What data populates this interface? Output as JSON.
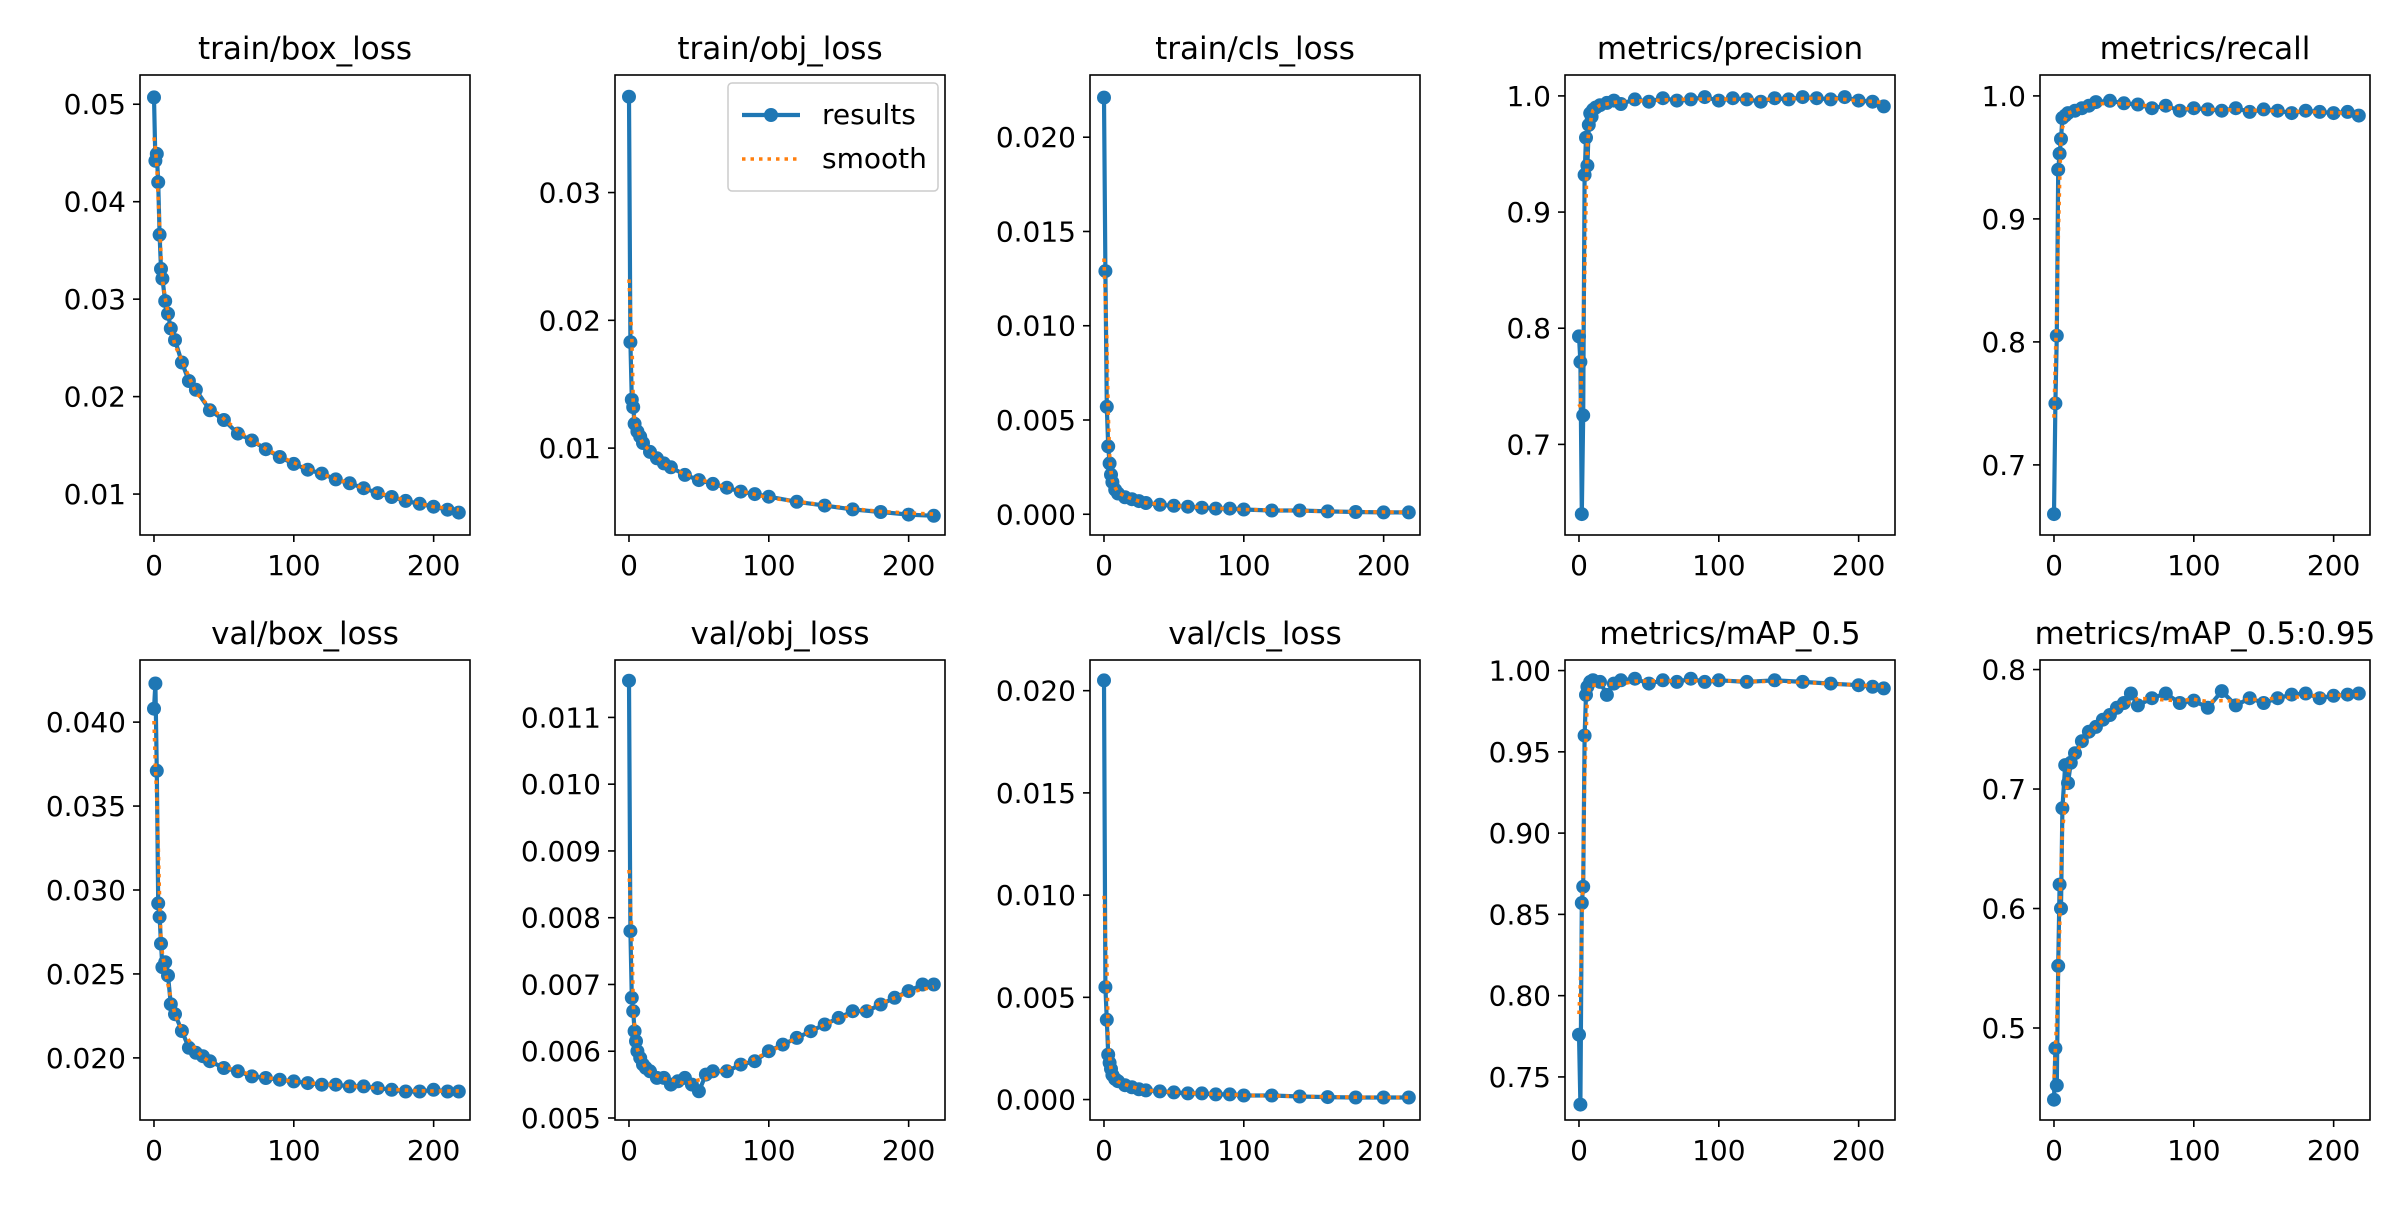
{
  "figure": {
    "colors": {
      "results": "#1f77b4",
      "smooth": "#ff7f0e",
      "axes": "#000000",
      "background": "#ffffff"
    }
  },
  "legend": {
    "placement": "upper-right of train/obj_loss panel",
    "entries": [
      {
        "label": "results",
        "style": "solid line with circle markers"
      },
      {
        "label": "smooth",
        "style": "dotted line"
      }
    ]
  },
  "chart_data": [
    {
      "type": "line",
      "title": "train/box_loss",
      "xlim": [
        -10,
        226
      ],
      "ylim": [
        0.0058,
        0.053
      ],
      "xticks": [
        0,
        100,
        200
      ],
      "xtick_labels": [
        "0",
        "100",
        "200"
      ],
      "yticks": [
        0.01,
        0.02,
        0.03,
        0.04,
        0.05
      ],
      "ytick_labels": [
        "0.01",
        "0.02",
        "0.03",
        "0.04",
        "0.05"
      ],
      "grid": false,
      "series_names": [
        "results",
        "smooth"
      ],
      "x": [
        0,
        1,
        2,
        3,
        4,
        5,
        6,
        8,
        10,
        12,
        15,
        20,
        25,
        30,
        40,
        50,
        60,
        70,
        80,
        90,
        100,
        110,
        120,
        130,
        140,
        150,
        160,
        170,
        180,
        190,
        200,
        210,
        218
      ],
      "y": [
        0.0507,
        0.0442,
        0.0449,
        0.042,
        0.0366,
        0.0331,
        0.0321,
        0.0298,
        0.0285,
        0.027,
        0.0258,
        0.0235,
        0.0216,
        0.0207,
        0.0186,
        0.0176,
        0.0162,
        0.0155,
        0.0146,
        0.0138,
        0.0131,
        0.0125,
        0.0121,
        0.0115,
        0.0111,
        0.0106,
        0.0101,
        0.0097,
        0.0093,
        0.009,
        0.0087,
        0.0084,
        0.0081
      ]
    },
    {
      "type": "line",
      "title": "train/obj_loss",
      "xlim": [
        -10,
        226
      ],
      "ylim": [
        0.0032,
        0.0392
      ],
      "xticks": [
        0,
        100,
        200
      ],
      "xtick_labels": [
        "0",
        "100",
        "200"
      ],
      "yticks": [
        0.01,
        0.02,
        0.03
      ],
      "ytick_labels": [
        "0.01",
        "0.02",
        "0.03"
      ],
      "grid": false,
      "series_names": [
        "results",
        "smooth"
      ],
      "has_legend": true,
      "x": [
        0,
        1,
        2,
        3,
        4,
        6,
        8,
        10,
        15,
        20,
        25,
        30,
        40,
        50,
        60,
        70,
        80,
        90,
        100,
        120,
        140,
        160,
        180,
        200,
        218
      ],
      "y": [
        0.0375,
        0.0183,
        0.0138,
        0.0132,
        0.0119,
        0.0113,
        0.0109,
        0.0104,
        0.0097,
        0.0092,
        0.0088,
        0.0085,
        0.0079,
        0.0075,
        0.0072,
        0.0069,
        0.0066,
        0.0064,
        0.0062,
        0.0058,
        0.0055,
        0.0052,
        0.005,
        0.0048,
        0.0047
      ]
    },
    {
      "type": "line",
      "title": "train/cls_loss",
      "xlim": [
        -10,
        226
      ],
      "ylim": [
        -0.0011,
        0.0233
      ],
      "xticks": [
        0,
        100,
        200
      ],
      "xtick_labels": [
        "0",
        "100",
        "200"
      ],
      "yticks": [
        0.0,
        0.005,
        0.01,
        0.015,
        0.02
      ],
      "ytick_labels": [
        "0.000",
        "0.005",
        "0.010",
        "0.015",
        "0.020"
      ],
      "grid": false,
      "series_names": [
        "results",
        "smooth"
      ],
      "x": [
        0,
        1,
        2,
        3,
        4,
        5,
        6,
        8,
        10,
        15,
        20,
        25,
        30,
        40,
        50,
        60,
        70,
        80,
        90,
        100,
        120,
        140,
        160,
        180,
        200,
        218
      ],
      "y": [
        0.0221,
        0.0129,
        0.0057,
        0.0036,
        0.0027,
        0.0021,
        0.0017,
        0.0013,
        0.0011,
        0.0009,
        0.0008,
        0.0007,
        0.0006,
        0.0005,
        0.00045,
        0.0004,
        0.00035,
        0.0003,
        0.0003,
        0.00025,
        0.0002,
        0.0002,
        0.00015,
        0.00012,
        0.0001,
        0.0001
      ]
    },
    {
      "type": "line",
      "title": "metrics/precision",
      "xlim": [
        -10,
        226
      ],
      "ylim": [
        0.622,
        1.018
      ],
      "xticks": [
        0,
        100,
        200
      ],
      "xtick_labels": [
        "0",
        "100",
        "200"
      ],
      "yticks": [
        0.7,
        0.8,
        0.9,
        1.0
      ],
      "ytick_labels": [
        "0.7",
        "0.8",
        "0.9",
        "1.0"
      ],
      "grid": false,
      "series_names": [
        "results",
        "smooth"
      ],
      "x": [
        0,
        1,
        2,
        3,
        4,
        5,
        6,
        7,
        8,
        9,
        10,
        12,
        15,
        20,
        25,
        30,
        40,
        50,
        60,
        70,
        80,
        90,
        100,
        110,
        120,
        130,
        140,
        150,
        160,
        170,
        180,
        190,
        200,
        210,
        218
      ],
      "y": [
        0.793,
        0.771,
        0.64,
        0.725,
        0.932,
        0.964,
        0.94,
        0.975,
        0.985,
        0.982,
        0.988,
        0.99,
        0.992,
        0.994,
        0.996,
        0.993,
        0.997,
        0.995,
        0.998,
        0.996,
        0.997,
        0.999,
        0.996,
        0.998,
        0.997,
        0.995,
        0.998,
        0.997,
        0.999,
        0.998,
        0.997,
        0.999,
        0.996,
        0.995,
        0.991
      ]
    },
    {
      "type": "line",
      "title": "metrics/recall",
      "xlim": [
        -10,
        226
      ],
      "ylim": [
        0.643,
        1.017
      ],
      "xticks": [
        0,
        100,
        200
      ],
      "xtick_labels": [
        "0",
        "100",
        "200"
      ],
      "yticks": [
        0.7,
        0.8,
        0.9,
        1.0
      ],
      "ytick_labels": [
        "0.7",
        "0.8",
        "0.9",
        "1.0"
      ],
      "grid": false,
      "series_names": [
        "results",
        "smooth"
      ],
      "x": [
        0,
        1,
        2,
        3,
        4,
        5,
        6,
        8,
        10,
        15,
        20,
        25,
        30,
        40,
        50,
        60,
        70,
        80,
        90,
        100,
        110,
        120,
        130,
        140,
        150,
        160,
        170,
        180,
        190,
        200,
        210,
        218
      ],
      "y": [
        0.66,
        0.75,
        0.805,
        0.94,
        0.953,
        0.965,
        0.982,
        0.984,
        0.986,
        0.988,
        0.99,
        0.992,
        0.995,
        0.996,
        0.994,
        0.993,
        0.99,
        0.992,
        0.988,
        0.99,
        0.989,
        0.988,
        0.99,
        0.987,
        0.989,
        0.988,
        0.986,
        0.988,
        0.987,
        0.986,
        0.987,
        0.984
      ]
    },
    {
      "type": "line",
      "title": "val/box_loss",
      "xlim": [
        -10,
        226
      ],
      "ylim": [
        0.0163,
        0.0437
      ],
      "xticks": [
        0,
        100,
        200
      ],
      "xtick_labels": [
        "0",
        "100",
        "200"
      ],
      "yticks": [
        0.02,
        0.025,
        0.03,
        0.035,
        0.04
      ],
      "ytick_labels": [
        "0.020",
        "0.025",
        "0.030",
        "0.035",
        "0.040"
      ],
      "grid": false,
      "series_names": [
        "results",
        "smooth"
      ],
      "x": [
        0,
        1,
        2,
        3,
        4,
        5,
        6,
        8,
        10,
        12,
        15,
        20,
        25,
        30,
        35,
        40,
        50,
        60,
        70,
        80,
        90,
        100,
        110,
        120,
        130,
        140,
        150,
        160,
        170,
        180,
        190,
        200,
        210,
        218
      ],
      "y": [
        0.0408,
        0.0423,
        0.0371,
        0.0292,
        0.0284,
        0.0268,
        0.0254,
        0.0257,
        0.0249,
        0.0232,
        0.0226,
        0.0216,
        0.0206,
        0.0203,
        0.0201,
        0.0198,
        0.0194,
        0.0192,
        0.0189,
        0.0188,
        0.0187,
        0.0186,
        0.0185,
        0.0184,
        0.0184,
        0.0183,
        0.0183,
        0.0182,
        0.0181,
        0.018,
        0.018,
        0.0181,
        0.018,
        0.018
      ]
    },
    {
      "type": "line",
      "title": "val/obj_loss",
      "xlim": [
        -10,
        226
      ],
      "ylim": [
        0.00497,
        0.01186
      ],
      "xticks": [
        0,
        100,
        200
      ],
      "xtick_labels": [
        "0",
        "100",
        "200"
      ],
      "yticks": [
        0.005,
        0.006,
        0.007,
        0.008,
        0.009,
        0.01,
        0.011
      ],
      "ytick_labels": [
        "0.005",
        "0.006",
        "0.007",
        "0.008",
        "0.009",
        "0.010",
        "0.011"
      ],
      "grid": false,
      "series_names": [
        "results",
        "smooth"
      ],
      "x": [
        0,
        1,
        2,
        3,
        4,
        5,
        6,
        8,
        10,
        12,
        15,
        20,
        25,
        30,
        35,
        40,
        45,
        50,
        55,
        60,
        70,
        80,
        90,
        100,
        110,
        120,
        130,
        140,
        150,
        160,
        170,
        180,
        190,
        200,
        210,
        218
      ],
      "y": [
        0.01155,
        0.0078,
        0.0068,
        0.0066,
        0.0063,
        0.00615,
        0.006,
        0.0059,
        0.0058,
        0.00575,
        0.0057,
        0.0056,
        0.0056,
        0.0055,
        0.00555,
        0.0056,
        0.0055,
        0.0054,
        0.00565,
        0.0057,
        0.0057,
        0.0058,
        0.00585,
        0.006,
        0.0061,
        0.0062,
        0.0063,
        0.0064,
        0.0065,
        0.0066,
        0.0066,
        0.0067,
        0.0068,
        0.0069,
        0.007,
        0.007
      ]
    },
    {
      "type": "line",
      "title": "val/cls_loss",
      "xlim": [
        -10,
        226
      ],
      "ylim": [
        -0.001,
        0.0215
      ],
      "xticks": [
        0,
        100,
        200
      ],
      "xtick_labels": [
        "0",
        "100",
        "200"
      ],
      "yticks": [
        0.0,
        0.005,
        0.01,
        0.015,
        0.02
      ],
      "ytick_labels": [
        "0.000",
        "0.005",
        "0.010",
        "0.015",
        "0.020"
      ],
      "grid": false,
      "series_names": [
        "results",
        "smooth"
      ],
      "x": [
        0,
        1,
        2,
        3,
        4,
        5,
        6,
        8,
        10,
        15,
        20,
        25,
        30,
        40,
        50,
        60,
        70,
        80,
        90,
        100,
        120,
        140,
        160,
        180,
        200,
        218
      ],
      "y": [
        0.0205,
        0.0055,
        0.0039,
        0.0022,
        0.0018,
        0.0015,
        0.0012,
        0.001,
        0.0009,
        0.0007,
        0.0006,
        0.0005,
        0.00045,
        0.0004,
        0.00035,
        0.0003,
        0.0003,
        0.00025,
        0.00025,
        0.0002,
        0.0002,
        0.00015,
        0.00012,
        0.0001,
        0.0001,
        0.0001
      ]
    },
    {
      "type": "line",
      "title": "metrics/mAP_0.5",
      "xlim": [
        -10,
        226
      ],
      "ylim": [
        0.7235,
        1.0065
      ],
      "xticks": [
        0,
        100,
        200
      ],
      "xtick_labels": [
        "0",
        "100",
        "200"
      ],
      "yticks": [
        0.75,
        0.8,
        0.85,
        0.9,
        0.95,
        1.0
      ],
      "ytick_labels": [
        "0.75",
        "0.80",
        "0.85",
        "0.90",
        "0.95",
        "1.00"
      ],
      "grid": false,
      "series_names": [
        "results",
        "smooth"
      ],
      "x": [
        0,
        1,
        2,
        3,
        4,
        5,
        6,
        8,
        10,
        15,
        20,
        25,
        30,
        40,
        50,
        60,
        70,
        80,
        90,
        100,
        120,
        140,
        160,
        180,
        200,
        210,
        218
      ],
      "y": [
        0.776,
        0.733,
        0.857,
        0.867,
        0.96,
        0.985,
        0.99,
        0.993,
        0.994,
        0.993,
        0.985,
        0.992,
        0.994,
        0.995,
        0.992,
        0.994,
        0.993,
        0.995,
        0.993,
        0.994,
        0.993,
        0.994,
        0.993,
        0.992,
        0.991,
        0.99,
        0.989
      ]
    },
    {
      "type": "line",
      "title": "metrics/mAP_0.5:0.95",
      "xlim": [
        -10,
        226
      ],
      "ylim": [
        0.423,
        0.808
      ],
      "xticks": [
        0,
        100,
        200
      ],
      "xtick_labels": [
        "0",
        "100",
        "200"
      ],
      "yticks": [
        0.5,
        0.6,
        0.7,
        0.8
      ],
      "ytick_labels": [
        "0.5",
        "0.6",
        "0.7",
        "0.8"
      ],
      "grid": false,
      "series_names": [
        "results",
        "smooth"
      ],
      "x": [
        0,
        1,
        2,
        3,
        4,
        5,
        6,
        8,
        10,
        12,
        15,
        20,
        25,
        30,
        35,
        40,
        45,
        50,
        55,
        60,
        70,
        80,
        90,
        100,
        110,
        120,
        130,
        140,
        150,
        160,
        170,
        180,
        190,
        200,
        210,
        218
      ],
      "y": [
        0.44,
        0.483,
        0.452,
        0.552,
        0.62,
        0.6,
        0.684,
        0.72,
        0.705,
        0.722,
        0.73,
        0.74,
        0.748,
        0.752,
        0.758,
        0.762,
        0.768,
        0.772,
        0.78,
        0.77,
        0.776,
        0.78,
        0.772,
        0.774,
        0.768,
        0.782,
        0.77,
        0.776,
        0.772,
        0.776,
        0.779,
        0.78,
        0.776,
        0.778,
        0.779,
        0.78
      ]
    }
  ]
}
